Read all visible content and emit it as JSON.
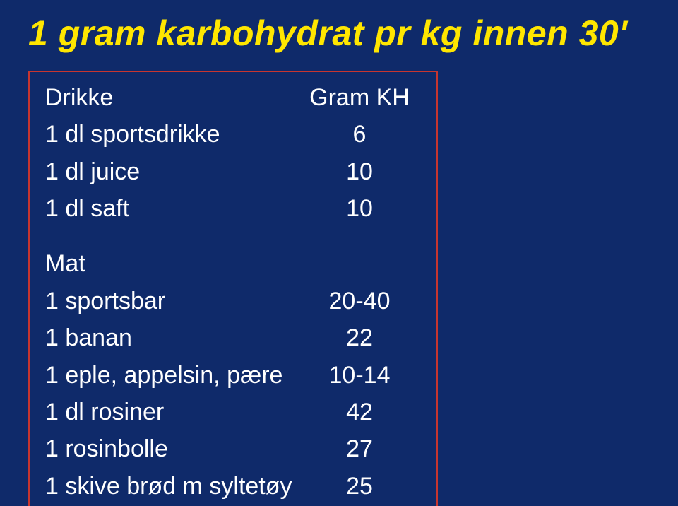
{
  "title": "1 gram karbohydrat pr kg innen 30'",
  "colors": {
    "background": "#0f2a6a",
    "title": "#ffe600",
    "text": "#ffffff",
    "border": "#c7352f"
  },
  "typography": {
    "title_fontsize": 50,
    "body_fontsize": 34,
    "font_family": "Arial",
    "title_italic": true,
    "title_bold": true
  },
  "table": {
    "drikke_header": {
      "left": "Drikke",
      "right": "Gram KH"
    },
    "drikke_rows": [
      {
        "label": "1 dl sportsdrikke",
        "value": "6"
      },
      {
        "label": "1 dl juice",
        "value": "10"
      },
      {
        "label": "1 dl saft",
        "value": "10"
      }
    ],
    "mat_header": {
      "left": "Mat",
      "right": ""
    },
    "mat_rows": [
      {
        "label": "1 sportsbar",
        "value": "20-40"
      },
      {
        "label": "1 banan",
        "value": "22"
      },
      {
        "label": "1 eple, appelsin, pære",
        "value": "10-14"
      },
      {
        "label": "1 dl rosiner",
        "value": "42"
      },
      {
        "label": "1 rosinbolle",
        "value": "27"
      },
      {
        "label": "1 skive brød m syltetøy",
        "value": "25"
      }
    ]
  }
}
